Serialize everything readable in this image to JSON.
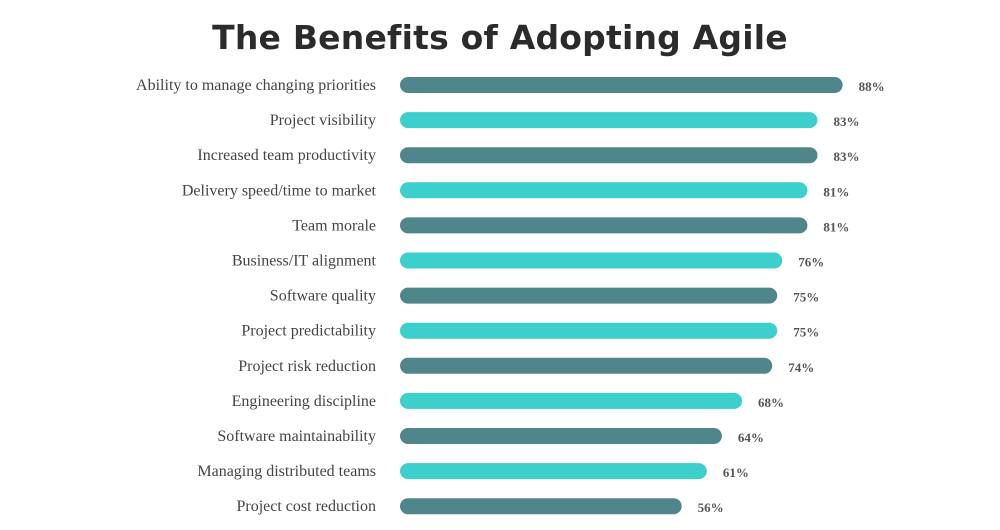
{
  "chart_data": {
    "type": "bar",
    "orientation": "horizontal",
    "title": "The Benefits of Adopting Agile",
    "categories": [
      "Ability to manage changing priorities",
      "Project visibility",
      "Increased team productivity",
      "Delivery speed/time to market",
      "Team morale",
      "Business/IT alignment",
      "Software quality",
      "Project predictability",
      "Project risk reduction",
      "Engineering discipline",
      "Software maintainability",
      "Managing distributed teams",
      "Project cost reduction"
    ],
    "values": [
      88,
      83,
      83,
      81,
      81,
      76,
      75,
      75,
      74,
      68,
      64,
      61,
      56
    ],
    "value_labels": [
      "88%",
      "83%",
      "83%",
      "81%",
      "81%",
      "76%",
      "75%",
      "75%",
      "74%",
      "68%",
      "64%",
      "61%",
      "56%"
    ],
    "unit": "%",
    "colors": [
      "#4f868b",
      "#3ccfcb"
    ],
    "grid": false,
    "legend": "none",
    "xlabel": "",
    "ylabel": ""
  }
}
